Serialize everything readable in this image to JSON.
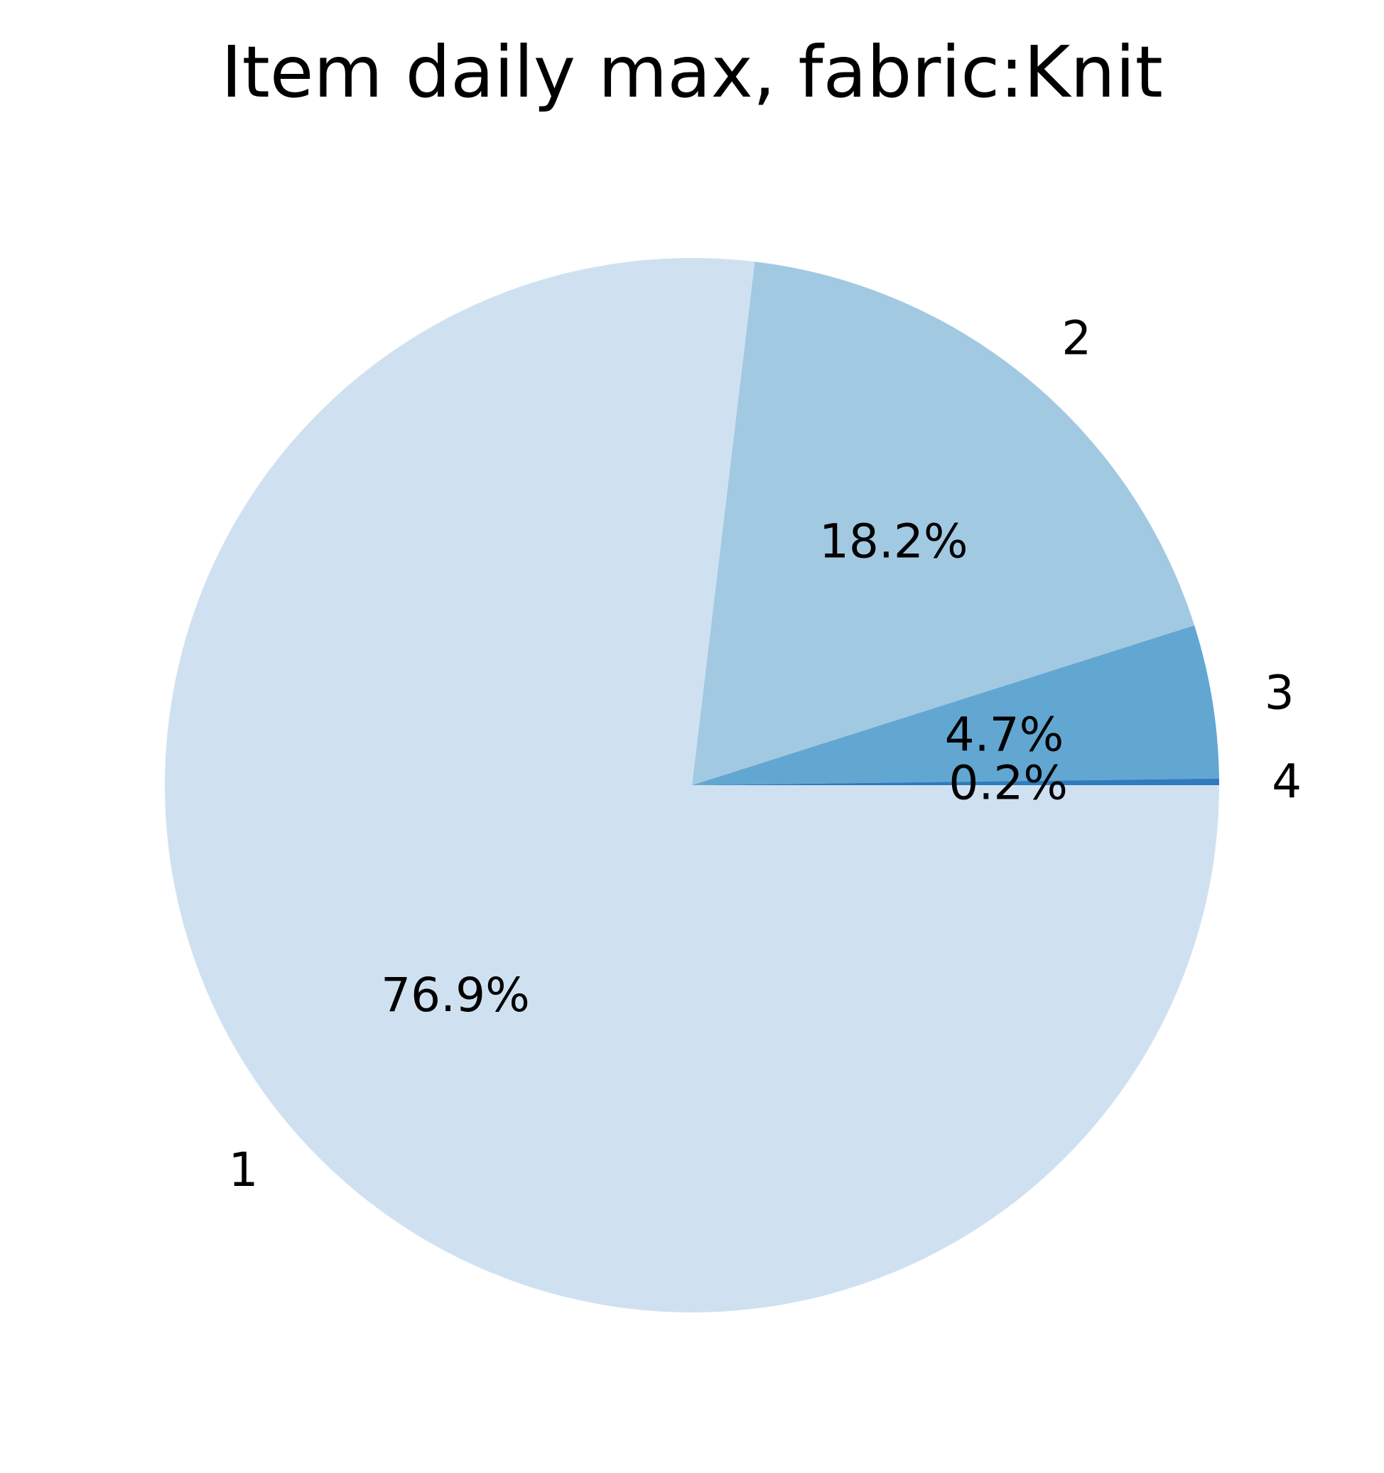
{
  "chart_data": {
    "type": "pie",
    "title": "Item daily max, fabric:Knit",
    "categories": [
      "1",
      "2",
      "3",
      "4"
    ],
    "values": [
      76.9,
      18.2,
      4.7,
      0.2
    ],
    "percent_labels": [
      "76.9%",
      "18.2%",
      "4.7%",
      "0.2%"
    ],
    "colors": [
      "#cfe1f1",
      "#a2c9e2",
      "#62a7d2",
      "#2f7bbd"
    ],
    "start_angle_deg": 0,
    "direction": "clockwise",
    "legend": "none"
  }
}
